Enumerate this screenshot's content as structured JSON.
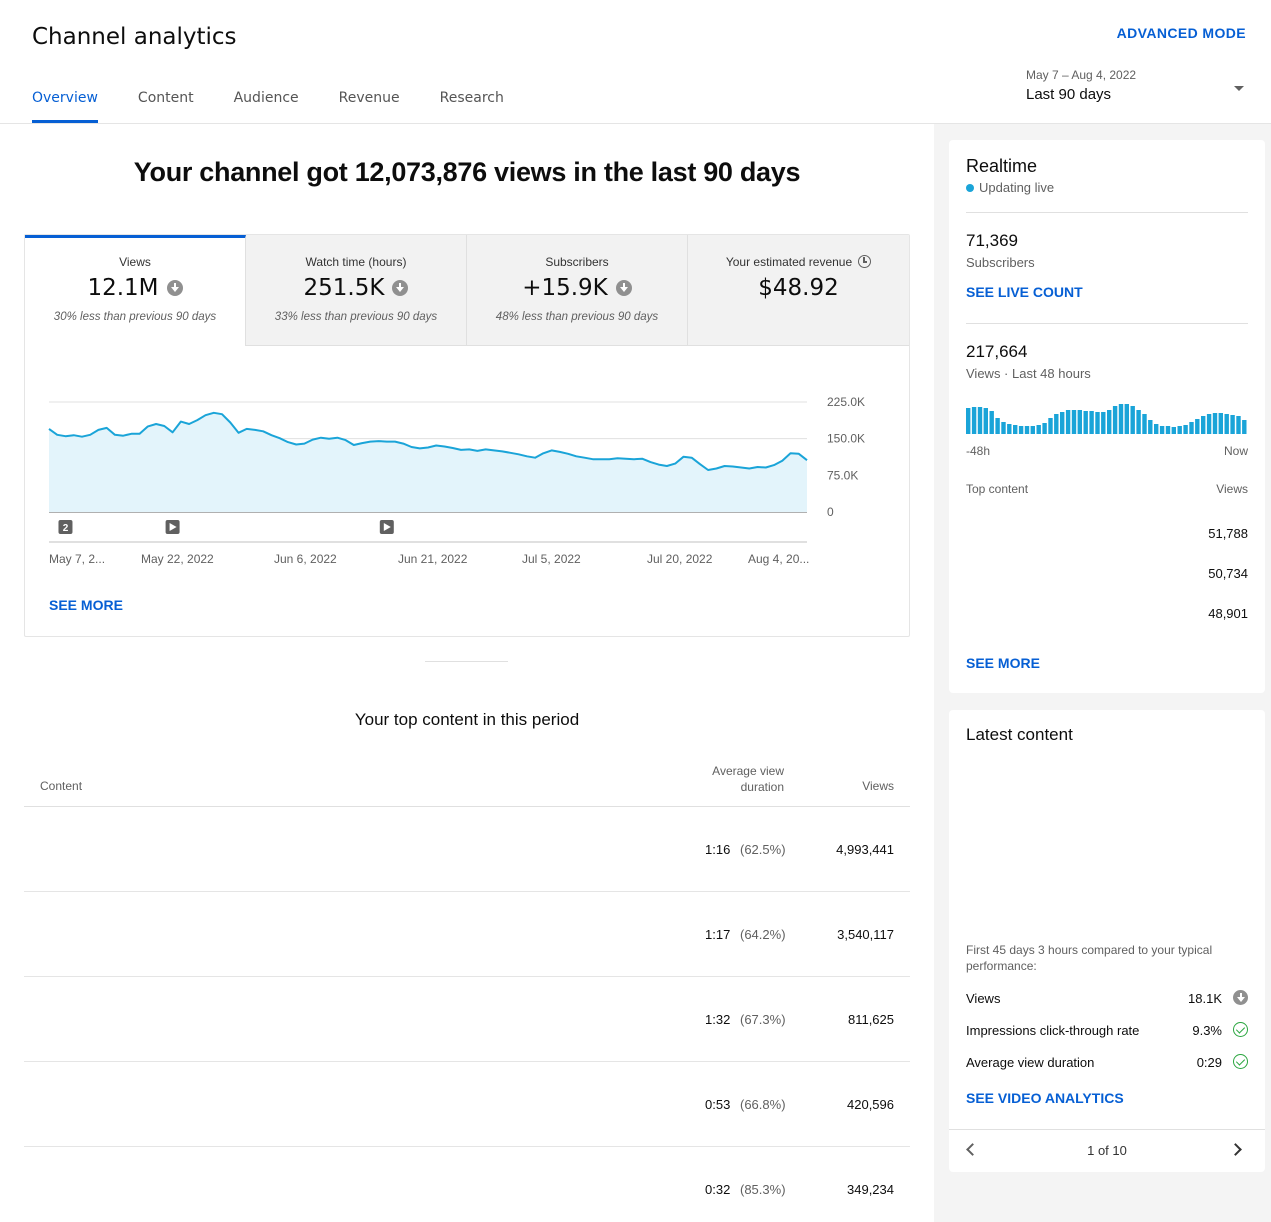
{
  "header": {
    "title": "Channel analytics",
    "advanced_mode": "ADVANCED MODE",
    "tabs": [
      {
        "label": "Overview",
        "active": true
      },
      {
        "label": "Content"
      },
      {
        "label": "Audience"
      },
      {
        "label": "Revenue"
      },
      {
        "label": "Research"
      }
    ],
    "date_range": "May 7 – Aug 4, 2022",
    "date_label": "Last 90 days"
  },
  "headline": "Your channel got 12,073,876 views in the last 90 days",
  "metrics": [
    {
      "label": "Views",
      "value": "12.1M",
      "sub": "30% less than previous 90 days",
      "trend": "down"
    },
    {
      "label": "Watch time (hours)",
      "value": "251.5K",
      "sub": "33% less than previous 90 days",
      "trend": "down"
    },
    {
      "label": "Subscribers",
      "value": "+15.9K",
      "sub": "48% less than previous 90 days",
      "trend": "down"
    },
    {
      "label": "Your estimated revenue",
      "value": "$48.92",
      "sub": ""
    }
  ],
  "chart_data": {
    "type": "area",
    "x_tick_labels": [
      "May 7, 2...",
      "May 22, 2022",
      "Jun 6, 2022",
      "Jun 21, 2022",
      "Jul 5, 2022",
      "Jul 20, 2022",
      "Aug 4, 20..."
    ],
    "y_tick_labels": [
      "225.0K",
      "150.0K",
      "75.0K",
      "0"
    ],
    "ylim": [
      0,
      225000
    ],
    "grid": true,
    "line_color": "#1aa4d8",
    "fill_color": "#e3f4fb",
    "values": [
      170000,
      158000,
      155000,
      157000,
      154000,
      158000,
      168000,
      172000,
      158000,
      156000,
      160000,
      160000,
      175000,
      180000,
      176000,
      163000,
      185000,
      180000,
      188000,
      198000,
      203000,
      200000,
      183000,
      162000,
      170000,
      168000,
      165000,
      157000,
      151000,
      143000,
      138000,
      140000,
      148000,
      152000,
      150000,
      152000,
      147000,
      137000,
      141000,
      144000,
      145000,
      144000,
      144000,
      140000,
      133000,
      130000,
      132000,
      136000,
      134000,
      131000,
      127000,
      128000,
      125000,
      128000,
      126000,
      124000,
      121000,
      118000,
      114000,
      111000,
      120000,
      126000,
      123000,
      119000,
      114000,
      111000,
      108000,
      108000,
      108000,
      110000,
      109000,
      108000,
      109000,
      102000,
      97000,
      94000,
      99000,
      113000,
      111000,
      98000,
      86000,
      89000,
      94000,
      93000,
      91000,
      89000,
      92000,
      91000,
      96000,
      105000,
      120000,
      119000,
      106000
    ],
    "annotations": [
      {
        "index": 2,
        "label": "2"
      },
      {
        "index": 15,
        "label": "play"
      },
      {
        "index": 41,
        "label": "play"
      }
    ]
  },
  "see_more": "SEE MORE",
  "top_content": {
    "title": "Your top content in this period",
    "col_content": "Content",
    "col_avg_line1": "Average view",
    "col_avg_line2": "duration",
    "col_views": "Views",
    "rows": [
      {
        "duration": "1:16",
        "percent": "(62.5%)",
        "views": "4,993,441"
      },
      {
        "duration": "1:17",
        "percent": "(64.2%)",
        "views": "3,540,117"
      },
      {
        "duration": "1:32",
        "percent": "(67.3%)",
        "views": "811,625"
      },
      {
        "duration": "0:53",
        "percent": "(66.8%)",
        "views": "420,596"
      },
      {
        "duration": "0:32",
        "percent": "(85.3%)",
        "views": "349,234"
      }
    ]
  },
  "realtime": {
    "title": "Realtime",
    "status": "Updating live",
    "subscribers_value": "71,369",
    "subscribers_label": "Subscribers",
    "see_live_count": "SEE LIVE COUNT",
    "views_value": "217,664",
    "views_label": "Views · Last 48 hours",
    "bar_values": [
      26,
      27,
      27,
      26,
      23,
      16,
      12,
      10,
      9,
      8,
      8,
      8,
      9,
      11,
      16,
      20,
      22,
      24,
      24,
      24,
      23,
      23,
      22,
      22,
      24,
      28,
      30,
      30,
      28,
      24,
      20,
      14,
      10,
      8,
      8,
      7,
      8,
      9,
      12,
      15,
      18,
      20,
      21,
      21,
      20,
      19,
      18,
      14
    ],
    "axis_left": "-48h",
    "axis_right": "Now",
    "top_content_label": "Top content",
    "top_views_label": "Views",
    "top_rows": [
      "51,788",
      "50,734",
      "48,901"
    ],
    "see_more": "SEE MORE"
  },
  "latest_content": {
    "title": "Latest content",
    "description": "First 45 days 3 hours compared to your typical performance:",
    "rows": [
      {
        "label": "Views",
        "value": "18.1K",
        "icon": "down"
      },
      {
        "label": "Impressions click-through rate",
        "value": "9.3%",
        "icon": "check"
      },
      {
        "label": "Average view duration",
        "value": "0:29",
        "icon": "check"
      }
    ],
    "link": "SEE VIDEO ANALYTICS",
    "pager": "1 of 10"
  }
}
